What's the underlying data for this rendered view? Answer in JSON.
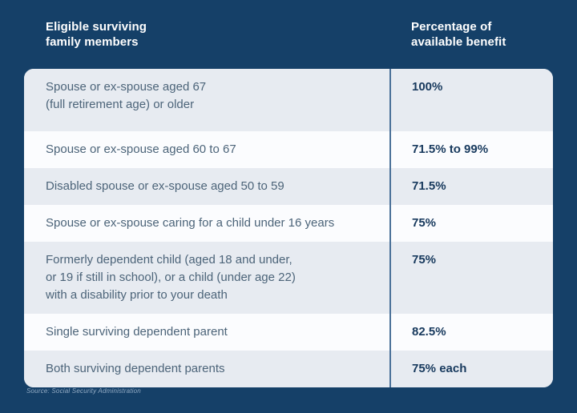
{
  "chart_data": {
    "type": "table",
    "title": "",
    "columns": [
      "Eligible surviving family members",
      "Percentage of available benefit"
    ],
    "rows": [
      [
        "Spouse or ex-spouse aged 67 (full retirement age) or older",
        "100%"
      ],
      [
        "Spouse or ex-spouse aged 60 to 67",
        "71.5% to 99%"
      ],
      [
        "Disabled spouse or ex-spouse aged 50 to 59",
        "71.5%"
      ],
      [
        "Spouse or ex-spouse caring for a child under 16 years",
        "75%"
      ],
      [
        "Formerly dependent child (aged 18 and under, or 19 if still in school), or a child (under age 22) with a disability prior to your death",
        "75%"
      ],
      [
        "Single surviving dependent parent",
        "82.5%"
      ],
      [
        "Both surviving dependent parents",
        "75% each"
      ]
    ],
    "source": "Source: Social Security Administration",
    "layout": "two-column table, alternating row shading, vertical divider between columns"
  },
  "display": {
    "header_left": "Eligible surviving\nfamily members",
    "header_right": "Percentage of\navailable benefit",
    "rows": [
      {
        "member": "Spouse or ex-spouse aged 67\n(full retirement age) or older",
        "benefit": "100%"
      },
      {
        "member": "Spouse or ex-spouse aged 60 to 67",
        "benefit": "71.5% to 99%"
      },
      {
        "member": "Disabled spouse or ex-spouse aged 50 to 59",
        "benefit": "71.5%"
      },
      {
        "member": "Spouse or ex-spouse caring for a child under 16 years",
        "benefit": "75%"
      },
      {
        "member": "Formerly dependent child (aged 18 and under,\nor 19 if still in school), or a child (under age 22)\nwith a disability prior to your death",
        "benefit": "75%"
      },
      {
        "member": "Single surviving dependent parent",
        "benefit": "82.5%"
      },
      {
        "member": "Both surviving dependent parents",
        "benefit": "75% each"
      }
    ],
    "source_note": "Source: Social Security Administration"
  },
  "colors": {
    "background_navy": "#154068",
    "row_shaded": "#e7ebf1",
    "row_plain": "#fbfcfe",
    "column_divider": "#4a7198",
    "member_text": "#4c6479",
    "benefit_text": "#17395d",
    "header_text": "#ffffff",
    "source_text": "#93abc4"
  }
}
